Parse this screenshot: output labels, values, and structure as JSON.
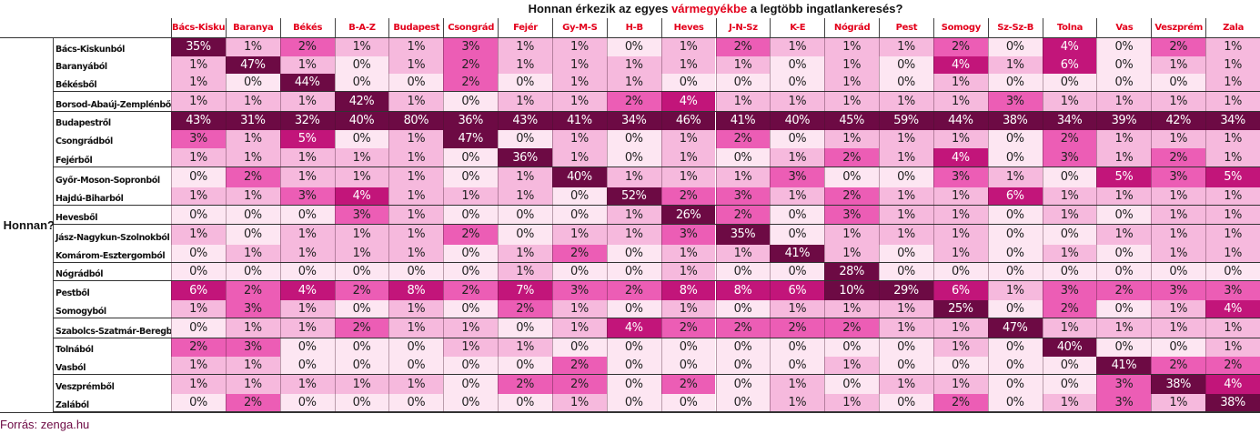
{
  "title": {
    "before": "Honnan érkezik az egyes ",
    "accent": "vármegyékbe",
    "after": " a legtöbb ingatlankeresés?"
  },
  "side_label": "Honnan?",
  "source": "Forrás: zenga.hu",
  "colors": {
    "accent": "#e3001b",
    "level_0": "#fde6f2",
    "level_1": "#f6b9dd",
    "level_2": "#ec5db5",
    "level_3": "#c2157a",
    "level_4": "#6d0a44"
  },
  "chart_data": {
    "type": "heatmap",
    "title": "Honnan érkezik az egyes vármegyékbe a legtöbb ingatlankeresés?",
    "xlabel": "",
    "ylabel": "Honnan?",
    "unit": "%",
    "columns": [
      "Bács-Kiskun",
      "Baranya",
      "Békés",
      "B-A-Z",
      "Budapest",
      "Csongrád",
      "Fejér",
      "Gy-M-S",
      "H-B",
      "Heves",
      "J-N-Sz",
      "K-E",
      "Nógrád",
      "Pest",
      "Somogy",
      "Sz-Sz-B",
      "Tolna",
      "Vas",
      "Veszprém",
      "Zala"
    ],
    "rows": [
      "Bács-Kiskunból",
      "Baranyából",
      "Békésből",
      "Borsod-Abaúj-Zemplénből",
      "Budapestről",
      "Csongrádból",
      "Fejérből",
      "Győr-Moson-Sopronból",
      "Hajdú-Biharból",
      "Hevesből",
      "Jász-Nagykun-Szolnokból",
      "Komárom-Esztergomból",
      "Nógrádból",
      "Pestből",
      "Somogyból",
      "Szabolcs-Szatmár-Beregből",
      "Tolnából",
      "Vasból",
      "Veszprémből",
      "Zalából"
    ],
    "values": [
      [
        35,
        1,
        2,
        1,
        1,
        3,
        1,
        1,
        0,
        1,
        2,
        1,
        1,
        1,
        2,
        0,
        4,
        0,
        2,
        1
      ],
      [
        1,
        47,
        1,
        0,
        1,
        2,
        1,
        1,
        1,
        1,
        1,
        0,
        1,
        0,
        4,
        1,
        6,
        0,
        1,
        1
      ],
      [
        1,
        0,
        44,
        0,
        0,
        2,
        0,
        1,
        1,
        0,
        0,
        0,
        1,
        0,
        1,
        0,
        0,
        0,
        0,
        1
      ],
      [
        1,
        1,
        1,
        42,
        1,
        0,
        1,
        1,
        2,
        4,
        1,
        1,
        1,
        1,
        1,
        3,
        1,
        1,
        1,
        1
      ],
      [
        43,
        31,
        32,
        40,
        80,
        36,
        43,
        41,
        34,
        46,
        41,
        40,
        45,
        59,
        44,
        38,
        34,
        39,
        42,
        34
      ],
      [
        3,
        1,
        5,
        0,
        1,
        47,
        0,
        1,
        0,
        1,
        2,
        0,
        1,
        1,
        1,
        0,
        2,
        1,
        1,
        1
      ],
      [
        1,
        1,
        1,
        1,
        1,
        0,
        36,
        1,
        0,
        1,
        0,
        1,
        2,
        1,
        4,
        0,
        3,
        1,
        2,
        1
      ],
      [
        0,
        2,
        1,
        1,
        1,
        0,
        1,
        40,
        1,
        1,
        1,
        3,
        0,
        0,
        3,
        1,
        0,
        5,
        3,
        5
      ],
      [
        1,
        1,
        3,
        4,
        1,
        1,
        1,
        0,
        52,
        2,
        3,
        1,
        2,
        1,
        1,
        6,
        1,
        1,
        1,
        1
      ],
      [
        0,
        0,
        0,
        3,
        1,
        0,
        0,
        0,
        1,
        26,
        2,
        0,
        3,
        1,
        1,
        0,
        1,
        0,
        1,
        1
      ],
      [
        1,
        0,
        1,
        1,
        1,
        2,
        0,
        1,
        1,
        3,
        35,
        0,
        1,
        1,
        1,
        0,
        0,
        1,
        1,
        1
      ],
      [
        0,
        1,
        1,
        1,
        1,
        0,
        1,
        2,
        0,
        1,
        1,
        41,
        1,
        0,
        1,
        0,
        1,
        0,
        1,
        1
      ],
      [
        0,
        0,
        0,
        0,
        0,
        0,
        1,
        0,
        0,
        1,
        0,
        0,
        28,
        0,
        0,
        0,
        0,
        0,
        0,
        0
      ],
      [
        6,
        2,
        4,
        2,
        8,
        2,
        7,
        3,
        2,
        8,
        8,
        6,
        10,
        29,
        6,
        1,
        3,
        2,
        3,
        3
      ],
      [
        1,
        3,
        1,
        0,
        1,
        0,
        2,
        1,
        0,
        1,
        0,
        1,
        1,
        1,
        25,
        0,
        2,
        0,
        1,
        4
      ],
      [
        0,
        1,
        1,
        2,
        1,
        1,
        0,
        1,
        4,
        2,
        2,
        2,
        2,
        1,
        1,
        47,
        1,
        1,
        1,
        1
      ],
      [
        2,
        3,
        0,
        0,
        0,
        1,
        1,
        0,
        0,
        0,
        0,
        0,
        0,
        0,
        1,
        0,
        40,
        0,
        0,
        1
      ],
      [
        1,
        1,
        0,
        0,
        0,
        0,
        0,
        2,
        0,
        0,
        0,
        0,
        1,
        0,
        0,
        0,
        0,
        41,
        2,
        2
      ],
      [
        1,
        1,
        1,
        1,
        1,
        0,
        2,
        2,
        0,
        2,
        0,
        1,
        0,
        1,
        1,
        0,
        0,
        3,
        38,
        4
      ],
      [
        0,
        2,
        0,
        0,
        0,
        0,
        0,
        1,
        0,
        0,
        0,
        1,
        1,
        0,
        2,
        0,
        1,
        3,
        1,
        38
      ]
    ]
  }
}
